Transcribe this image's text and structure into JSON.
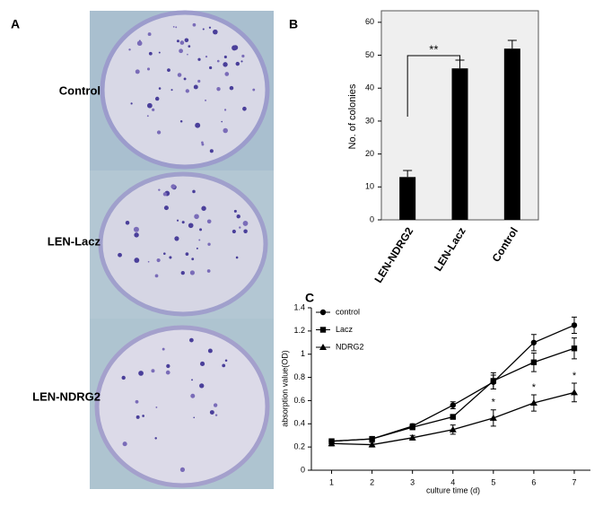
{
  "panel_a": {
    "label": "A",
    "rows": [
      "Control",
      "LEN-Lacz",
      "LEN-NDRG2"
    ]
  },
  "chart_data": [
    {
      "type": "bar",
      "label": "B",
      "y_label": "No. of colonies",
      "categories": [
        "LEN-NDRG2",
        "LEN-Lacz",
        "Control"
      ],
      "values": [
        13,
        46,
        52
      ],
      "errors": [
        2,
        2.5,
        2.5
      ],
      "color": "#000000",
      "ylim": [
        0,
        63.5
      ],
      "yticks": [
        0,
        10,
        20,
        30,
        40,
        50,
        60
      ],
      "annotations": [
        {
          "text": "**"
        }
      ],
      "background": "#efefef"
    },
    {
      "type": "line",
      "label": "C",
      "x_label": "culture time (d)",
      "y_label": "absorption value(OD)",
      "x": [
        1,
        2,
        3,
        4,
        5,
        6,
        7
      ],
      "series": [
        {
          "name": "control",
          "color": "#000000",
          "marker": "circle",
          "values": [
            0.25,
            0.27,
            0.38,
            0.56,
            0.76,
            1.1,
            1.25
          ],
          "errors": [
            0.02,
            0.02,
            0.02,
            0.03,
            0.06,
            0.07,
            0.07
          ]
        },
        {
          "name": "Lacz",
          "color": "#000000",
          "marker": "square",
          "values": [
            0.25,
            0.27,
            0.37,
            0.46,
            0.77,
            0.93,
            1.05
          ],
          "errors": [
            0.02,
            0.02,
            0.02,
            0.02,
            0.07,
            0.08,
            0.09
          ]
        },
        {
          "name": "NDRG2",
          "color": "#000000",
          "marker": "triangle",
          "values": [
            0.23,
            0.22,
            0.28,
            0.35,
            0.45,
            0.58,
            0.67
          ],
          "errors": [
            0.02,
            0.02,
            0.02,
            0.04,
            0.07,
            0.07,
            0.08
          ]
        }
      ],
      "xlim": [
        0.5,
        7.4
      ],
      "xticks": [
        1,
        2,
        3,
        4,
        5,
        6,
        7
      ],
      "ylim": [
        0,
        1.4
      ],
      "yticks": [
        0,
        0.2,
        0.4,
        0.6,
        0.8,
        1,
        1.2,
        1.4
      ],
      "annotations": [
        {
          "text": "*",
          "x": 5
        },
        {
          "text": "*",
          "x": 6
        },
        {
          "text": "*",
          "x": 7
        }
      ],
      "legend": "upper left"
    }
  ]
}
